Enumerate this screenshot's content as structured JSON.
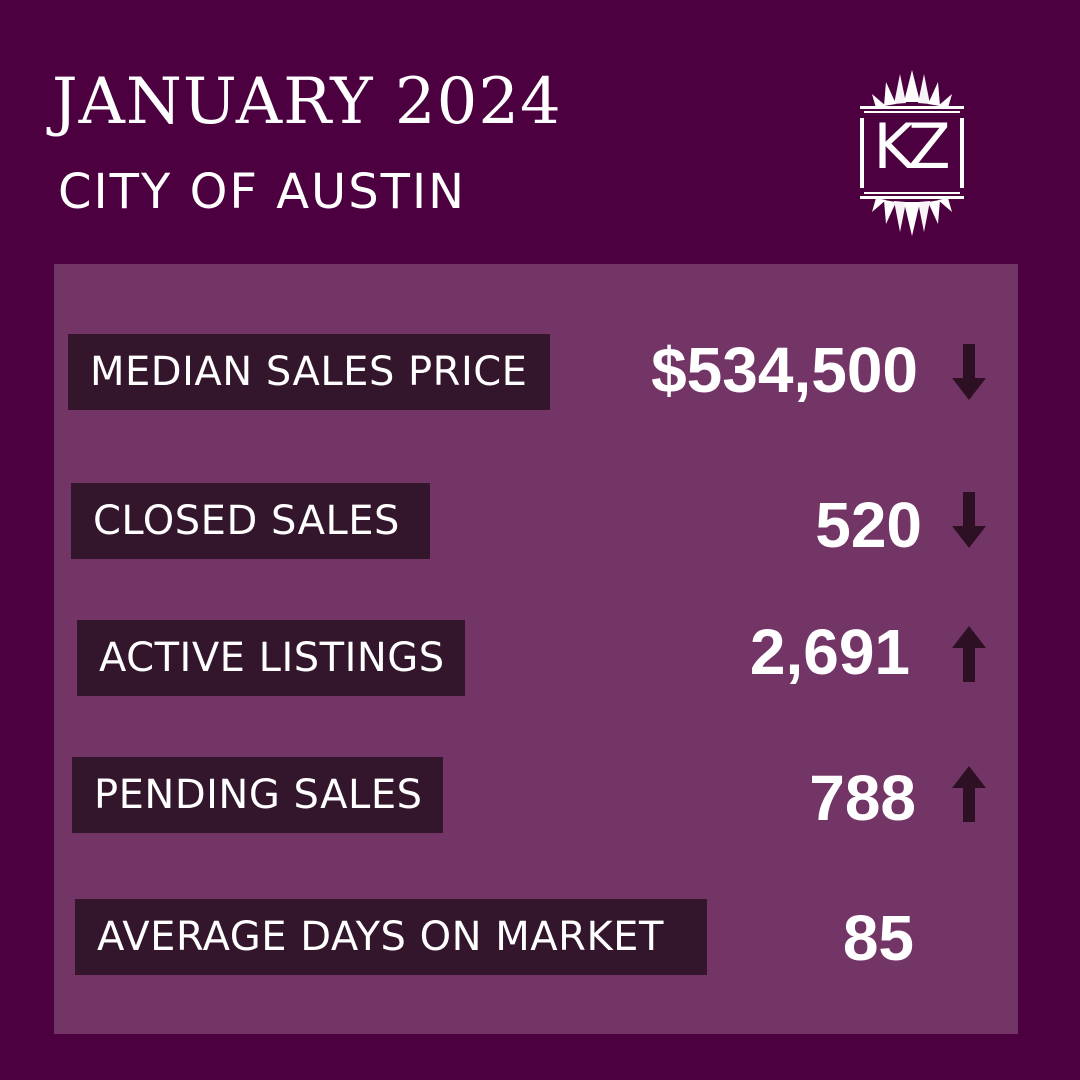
{
  "header": {
    "title": "JANUARY 2024",
    "subtitle": "CITY OF AUSTIN",
    "logo_text": "KZ"
  },
  "colors": {
    "background": "#4d0040",
    "panel": "#733565",
    "label_box": "#34162c",
    "arrow": "#2e1025",
    "text": "#ffffff"
  },
  "stats": [
    {
      "label": "MEDIAN SALES PRICE",
      "value": "$534,500",
      "trend": "down",
      "icon": "arrow-down-icon"
    },
    {
      "label": "CLOSED SALES",
      "value": "520",
      "trend": "down",
      "icon": "arrow-down-icon"
    },
    {
      "label": "ACTIVE LISTINGS",
      "value": "2,691",
      "trend": "up",
      "icon": "arrow-up-icon"
    },
    {
      "label": "PENDING SALES",
      "value": "788",
      "trend": "up",
      "icon": "arrow-up-icon"
    },
    {
      "label": "AVERAGE DAYS ON MARKET",
      "value": "85",
      "trend": "none"
    }
  ]
}
